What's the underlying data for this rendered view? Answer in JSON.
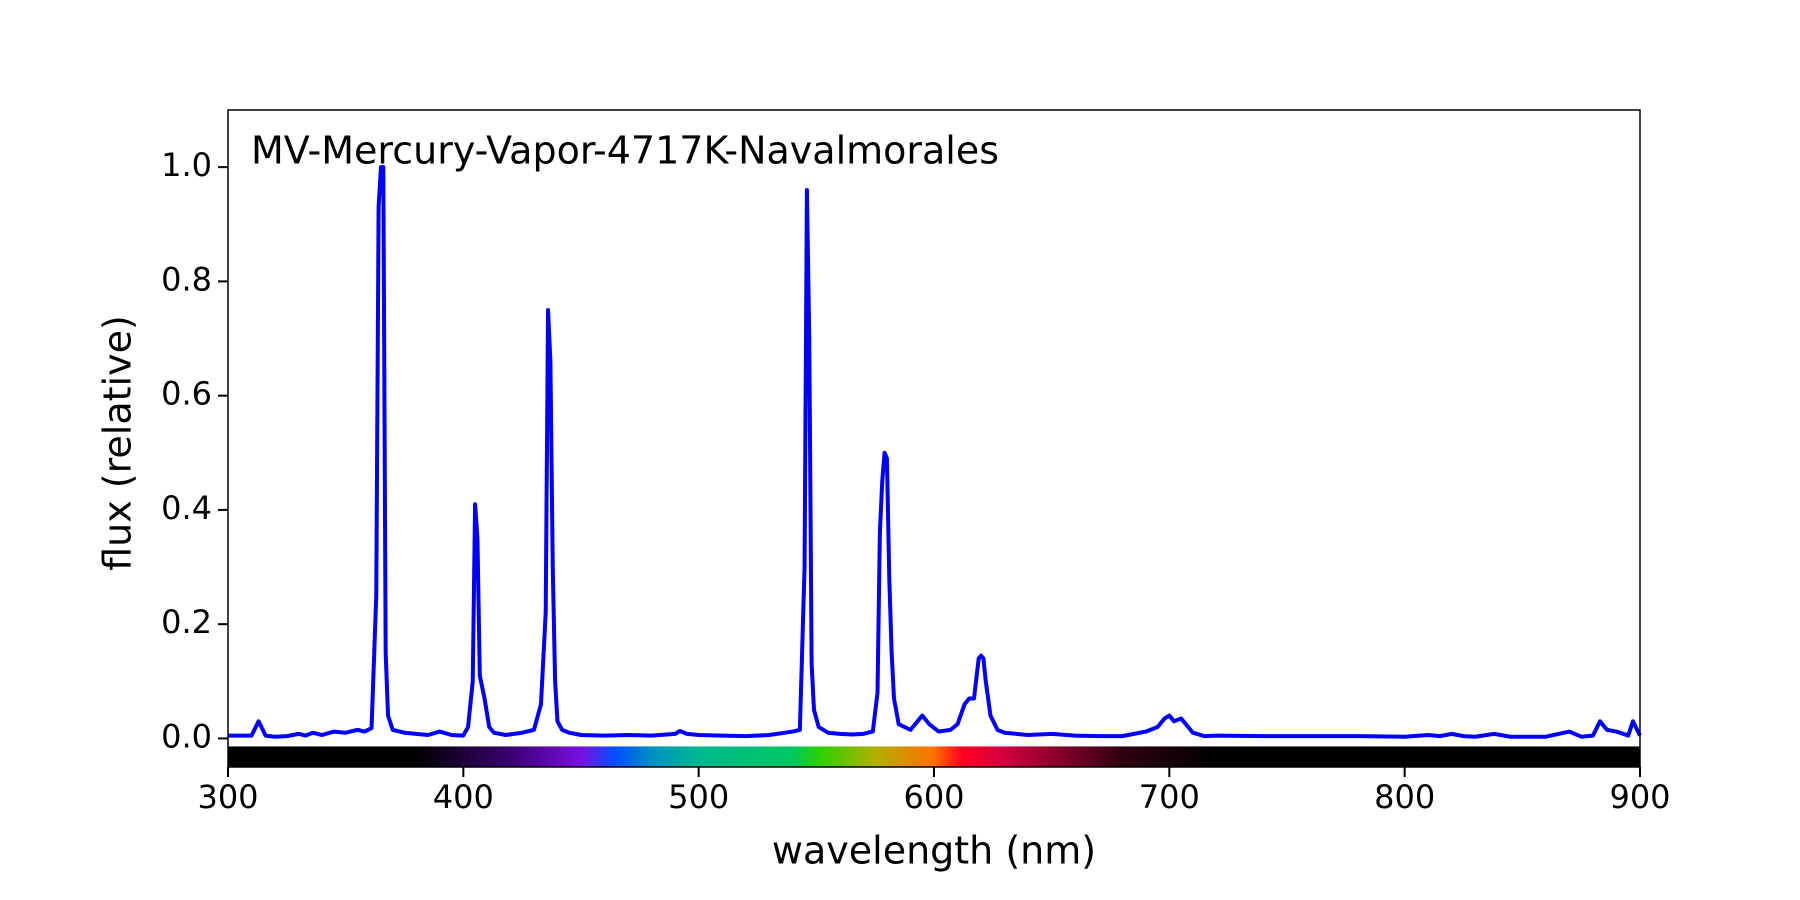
{
  "chart_data": {
    "type": "line",
    "title": "MV-Mercury-Vapor-4717K-Navalmorales",
    "x_label": "wavelength (nm)",
    "y_label": "flux (relative)",
    "color": "#0000ff",
    "xlim": [
      300,
      900
    ],
    "ylim": [
      -0.05,
      1.1
    ],
    "xticks": [
      300,
      400,
      500,
      600,
      700,
      800,
      900
    ],
    "yticks": [
      {
        "value": 0,
        "label": "0.0"
      },
      0.2,
      0.4,
      0.6,
      0.8,
      {
        "value": 1,
        "label": "1.0"
      }
    ],
    "x": [
      300,
      305,
      310,
      313,
      316,
      320,
      325,
      330,
      333,
      336,
      340,
      345,
      350,
      355,
      358,
      361,
      363,
      364,
      365,
      366,
      367,
      368,
      370,
      375,
      380,
      385,
      390,
      395,
      400,
      402,
      404,
      405,
      406,
      407,
      409,
      411,
      413,
      418,
      425,
      430,
      433,
      435,
      436,
      437,
      438,
      439,
      440,
      442,
      445,
      450,
      460,
      470,
      480,
      490,
      492,
      495,
      500,
      510,
      520,
      530,
      540,
      543,
      545,
      546,
      547,
      548,
      549,
      551,
      555,
      560,
      565,
      570,
      574,
      576,
      577,
      578,
      579,
      580,
      581,
      582,
      583,
      585,
      590,
      593,
      595,
      598,
      602,
      607,
      610,
      613,
      615,
      617,
      619,
      620,
      621,
      622,
      624,
      627,
      630,
      640,
      650,
      660,
      670,
      680,
      690,
      695,
      698,
      700,
      702,
      705,
      707,
      710,
      715,
      720,
      740,
      760,
      780,
      800,
      810,
      815,
      820,
      825,
      830,
      838,
      845,
      860,
      870,
      875,
      880,
      883,
      886,
      890,
      895,
      897,
      900
    ],
    "values": [
      0.005,
      0.005,
      0.005,
      0.03,
      0.005,
      0.003,
      0.004,
      0.008,
      0.005,
      0.01,
      0.006,
      0.012,
      0.01,
      0.015,
      0.012,
      0.018,
      0.25,
      0.93,
      1.0,
      1.0,
      0.15,
      0.04,
      0.015,
      0.01,
      0.008,
      0.006,
      0.012,
      0.006,
      0.005,
      0.02,
      0.1,
      0.41,
      0.35,
      0.11,
      0.07,
      0.02,
      0.01,
      0.006,
      0.01,
      0.015,
      0.06,
      0.22,
      0.75,
      0.66,
      0.3,
      0.1,
      0.03,
      0.015,
      0.01,
      0.006,
      0.005,
      0.006,
      0.005,
      0.008,
      0.013,
      0.008,
      0.006,
      0.005,
      0.004,
      0.006,
      0.012,
      0.015,
      0.3,
      0.96,
      0.7,
      0.13,
      0.05,
      0.02,
      0.01,
      0.008,
      0.007,
      0.008,
      0.012,
      0.08,
      0.36,
      0.45,
      0.5,
      0.49,
      0.28,
      0.15,
      0.07,
      0.025,
      0.015,
      0.03,
      0.04,
      0.025,
      0.012,
      0.015,
      0.025,
      0.06,
      0.07,
      0.07,
      0.14,
      0.145,
      0.14,
      0.1,
      0.04,
      0.015,
      0.01,
      0.006,
      0.008,
      0.005,
      0.004,
      0.004,
      0.012,
      0.02,
      0.035,
      0.04,
      0.03,
      0.035,
      0.025,
      0.01,
      0.004,
      0.005,
      0.004,
      0.004,
      0.004,
      0.003,
      0.006,
      0.004,
      0.008,
      0.004,
      0.003,
      0.008,
      0.003,
      0.003,
      0.012,
      0.003,
      0.005,
      0.03,
      0.015,
      0.012,
      0.005,
      0.03,
      0.005
    ]
  }
}
